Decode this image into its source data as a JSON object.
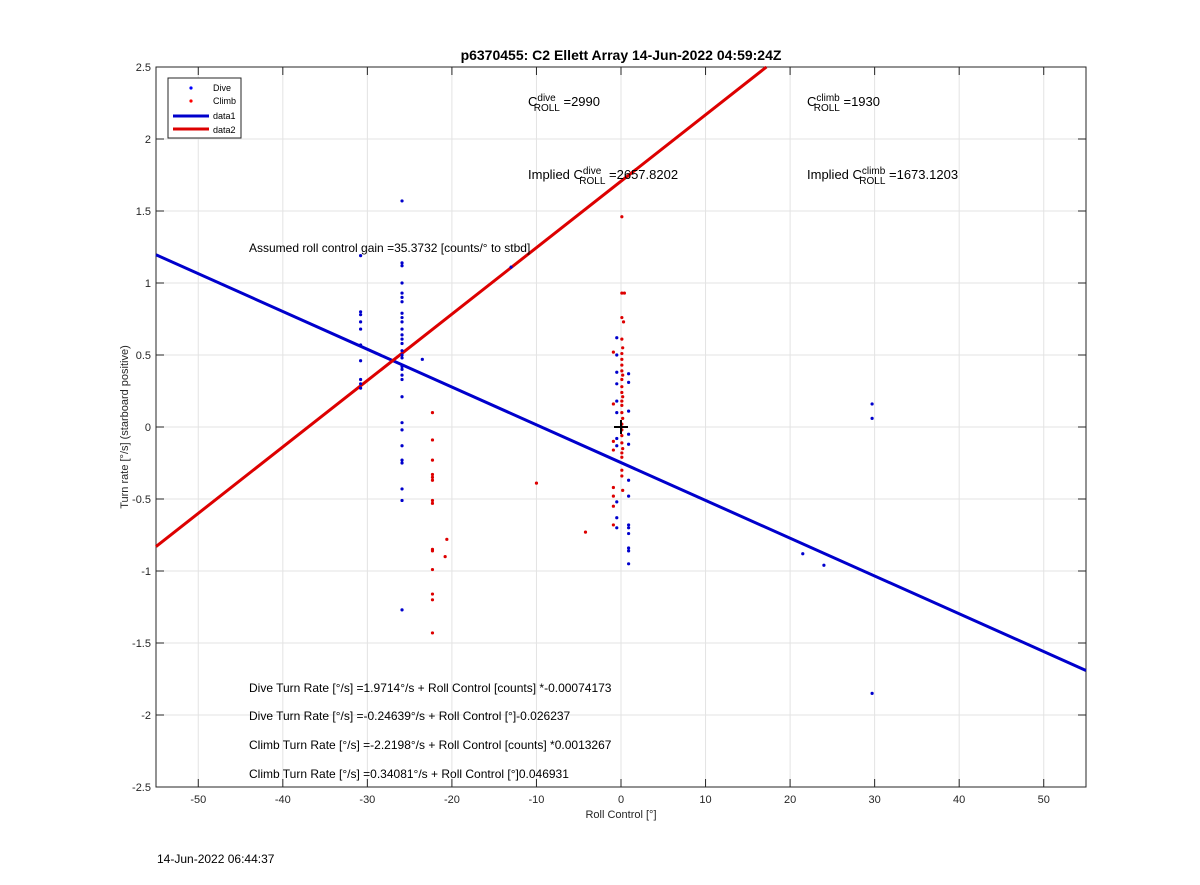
{
  "chart_data": {
    "type": "scatter",
    "title": "p6370455: C2 Ellett Array 14-Jun-2022 04:59:24Z",
    "xlabel": "Roll Control [°]",
    "ylabel": "Turn rate [°/s] (starboard positive)",
    "xlim": [
      -55,
      55
    ],
    "ylim": [
      -2.5,
      2.5
    ],
    "xticks": [
      -50,
      -40,
      -30,
      -20,
      -10,
      0,
      10,
      20,
      30,
      40,
      50
    ],
    "yticks": [
      -2.5,
      -2,
      -1.5,
      -1,
      -0.5,
      0,
      0.5,
      1,
      1.5,
      2,
      2.5
    ],
    "grid": true,
    "legend_position": "top-left",
    "legend": [
      {
        "label": "Dive",
        "kind": "marker",
        "color": "#0000ff"
      },
      {
        "label": "Climb",
        "kind": "marker",
        "color": "#ff0000"
      },
      {
        "label": "data1",
        "kind": "line",
        "color": "#0000cc"
      },
      {
        "label": "data2",
        "kind": "line",
        "color": "#dd0000"
      }
    ],
    "series": [
      {
        "name": "Dive",
        "kind": "scatter",
        "color": "#0000cc",
        "points": [
          [
            -30.8,
            0.8
          ],
          [
            -30.8,
            0.78
          ],
          [
            -30.8,
            0.73
          ],
          [
            -30.8,
            0.68
          ],
          [
            -30.8,
            0.57
          ],
          [
            -30.8,
            0.46
          ],
          [
            -30.8,
            0.33
          ],
          [
            -30.8,
            0.3
          ],
          [
            -30.8,
            0.27
          ],
          [
            -30.8,
            1.19
          ],
          [
            -25.9,
            1.57
          ],
          [
            -25.9,
            1.14
          ],
          [
            -25.9,
            1.12
          ],
          [
            -25.9,
            1.0
          ],
          [
            -25.9,
            0.93
          ],
          [
            -25.9,
            0.9
          ],
          [
            -25.9,
            0.87
          ],
          [
            -25.9,
            0.79
          ],
          [
            -25.9,
            0.76
          ],
          [
            -25.9,
            0.73
          ],
          [
            -25.9,
            0.68
          ],
          [
            -25.9,
            0.64
          ],
          [
            -25.9,
            0.61
          ],
          [
            -25.9,
            0.58
          ],
          [
            -25.9,
            0.53
          ],
          [
            -25.9,
            0.5
          ],
          [
            -25.9,
            0.48
          ],
          [
            -25.9,
            0.42
          ],
          [
            -25.9,
            0.4
          ],
          [
            -25.9,
            0.36
          ],
          [
            -25.9,
            0.33
          ],
          [
            -25.9,
            0.21
          ],
          [
            -25.9,
            0.03
          ],
          [
            -25.9,
            -0.02
          ],
          [
            -25.9,
            -0.13
          ],
          [
            -25.9,
            -0.23
          ],
          [
            -25.9,
            -0.25
          ],
          [
            -25.9,
            -0.43
          ],
          [
            -25.9,
            -0.51
          ],
          [
            -25.9,
            -1.27
          ],
          [
            -23.5,
            0.47
          ],
          [
            -13.0,
            1.11
          ],
          [
            -0.5,
            0.62
          ],
          [
            -0.5,
            0.5
          ],
          [
            -0.5,
            0.38
          ],
          [
            -0.5,
            0.3
          ],
          [
            -0.5,
            0.18
          ],
          [
            -0.5,
            0.1
          ],
          [
            -0.5,
            -0.08
          ],
          [
            -0.5,
            -0.13
          ],
          [
            -0.5,
            -0.52
          ],
          [
            -0.5,
            -0.63
          ],
          [
            -0.5,
            -0.7
          ],
          [
            0.9,
            0.37
          ],
          [
            0.9,
            0.31
          ],
          [
            0.9,
            0.11
          ],
          [
            0.9,
            -0.05
          ],
          [
            0.9,
            -0.12
          ],
          [
            0.9,
            -0.37
          ],
          [
            0.9,
            -0.48
          ],
          [
            0.9,
            -0.68
          ],
          [
            0.9,
            -0.7
          ],
          [
            0.9,
            -0.74
          ],
          [
            0.9,
            -0.84
          ],
          [
            0.9,
            -0.86
          ],
          [
            0.9,
            -0.95
          ],
          [
            21.5,
            -0.88
          ],
          [
            24.0,
            -0.96
          ],
          [
            29.7,
            0.16
          ],
          [
            29.7,
            0.06
          ],
          [
            29.7,
            -1.85
          ]
        ]
      },
      {
        "name": "Climb",
        "kind": "scatter",
        "color": "#dd0000",
        "points": [
          [
            -22.3,
            0.1
          ],
          [
            -22.3,
            -0.09
          ],
          [
            -22.3,
            -0.23
          ],
          [
            -22.3,
            -0.33
          ],
          [
            -22.3,
            -0.35
          ],
          [
            -22.3,
            -0.37
          ],
          [
            -22.3,
            -0.51
          ],
          [
            -22.3,
            -0.53
          ],
          [
            -22.3,
            -0.85
          ],
          [
            -22.3,
            -0.86
          ],
          [
            -22.3,
            -0.99
          ],
          [
            -22.3,
            -1.16
          ],
          [
            -22.3,
            -1.2
          ],
          [
            -22.3,
            -1.43
          ],
          [
            -20.6,
            -0.78
          ],
          [
            -20.8,
            -0.9
          ],
          [
            -10.0,
            -0.39
          ],
          [
            -4.2,
            -0.73
          ],
          [
            0.1,
            1.46
          ],
          [
            0.1,
            0.93
          ],
          [
            0.4,
            0.93
          ],
          [
            0.1,
            0.76
          ],
          [
            0.3,
            0.73
          ],
          [
            0.1,
            0.61
          ],
          [
            0.2,
            0.55
          ],
          [
            0.1,
            0.51
          ],
          [
            0.1,
            0.47
          ],
          [
            0.1,
            0.43
          ],
          [
            0.1,
            0.39
          ],
          [
            0.2,
            0.36
          ],
          [
            0.1,
            0.33
          ],
          [
            0.1,
            0.28
          ],
          [
            0.1,
            0.24
          ],
          [
            0.2,
            0.21
          ],
          [
            0.1,
            0.18
          ],
          [
            0.1,
            0.15
          ],
          [
            0.1,
            0.1
          ],
          [
            0.2,
            0.06
          ],
          [
            0.1,
            0.02
          ],
          [
            0.1,
            -0.02
          ],
          [
            0.1,
            -0.06
          ],
          [
            0.1,
            -0.11
          ],
          [
            0.2,
            -0.15
          ],
          [
            0.1,
            -0.18
          ],
          [
            0.1,
            -0.21
          ],
          [
            0.1,
            -0.3
          ],
          [
            -0.9,
            0.52
          ],
          [
            -0.9,
            0.16
          ],
          [
            -0.9,
            -0.1
          ],
          [
            -0.9,
            -0.16
          ],
          [
            -0.9,
            -0.42
          ],
          [
            -0.9,
            -0.48
          ],
          [
            -0.9,
            -0.55
          ],
          [
            -0.9,
            -0.68
          ],
          [
            0.1,
            -0.34
          ],
          [
            0.2,
            -0.44
          ]
        ]
      },
      {
        "name": "data1",
        "kind": "line",
        "color": "#0000cc",
        "x": [
          -55,
          55
        ],
        "y": [
          1.19588,
          -1.69063
        ]
      },
      {
        "name": "data2",
        "kind": "line",
        "color": "#dd0000",
        "x": [
          -55,
          17.2
        ],
        "y": [
          -0.8302,
          2.5
        ]
      }
    ],
    "marker": {
      "symbol": "+",
      "x": 0,
      "y": 0,
      "color": "#000000"
    },
    "annotations": {
      "c_dive": {
        "prefix": "C",
        "sup": "dive",
        "sub": "ROLL",
        "value": " =2990"
      },
      "c_climb": {
        "prefix": "C",
        "sup": "climb",
        "sub": "ROLL",
        "value": " =1930"
      },
      "implied_dive": {
        "prefix": "Implied C",
        "sup": "dive",
        "sub": "ROLL",
        "value": " =2657.8202"
      },
      "implied_climb": {
        "prefix": "Implied C",
        "sup": "climb",
        "sub": "ROLL",
        "value": " =1673.1203"
      },
      "gain": "Assumed roll control gain =35.3732 [counts/° to stbd]",
      "eq1": "Dive Turn Rate [°/s] =1.9714°/s + Roll Control [counts] *-0.00074173",
      "eq2": "Dive Turn Rate [°/s] =-0.24639°/s + Roll Control [°]-0.026237",
      "eq3": "Climb Turn Rate [°/s] =-2.2198°/s + Roll Control [counts] *0.0013267",
      "eq4": "Climb Turn Rate [°/s] =0.34081°/s + Roll Control [°]0.046931"
    }
  },
  "footer": {
    "timestamp": "14-Jun-2022 06:44:37"
  }
}
